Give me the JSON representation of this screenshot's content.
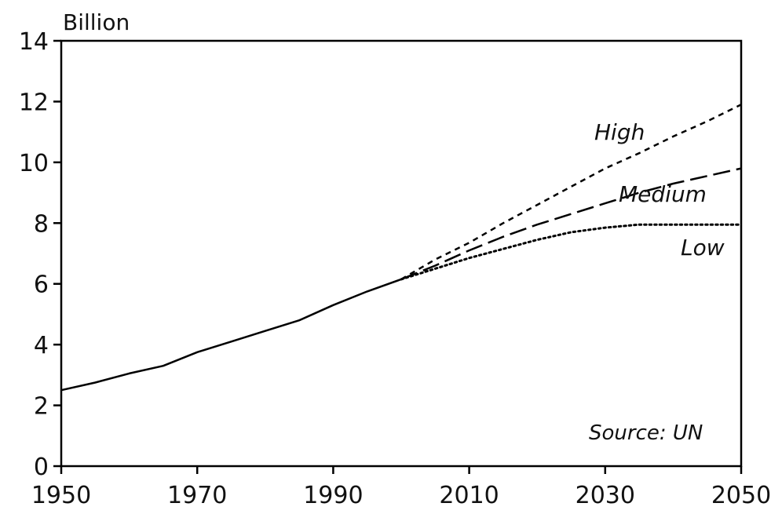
{
  "chart_data": {
    "type": "line",
    "ylabel": "Billion",
    "annotation": "Source: UN",
    "xlim": [
      1950,
      2050
    ],
    "ylim": [
      0,
      14
    ],
    "x_ticks": [
      "1950",
      "1970",
      "1990",
      "2010",
      "2030",
      "2050"
    ],
    "y_ticks": [
      "0",
      "2",
      "4",
      "6",
      "8",
      "10",
      "12",
      "14"
    ],
    "grid": false,
    "series": [
      {
        "name": "",
        "style": "solid",
        "x": [
          1950,
          1955,
          1960,
          1965,
          1970,
          1975,
          1980,
          1985,
          1990,
          1995,
          2000
        ],
        "values": [
          2.5,
          2.75,
          3.05,
          3.3,
          3.75,
          4.1,
          4.45,
          4.8,
          5.3,
          5.75,
          6.15
        ]
      },
      {
        "name": "High",
        "style": "short-dash",
        "x": [
          2000,
          2005,
          2010,
          2015,
          2020,
          2025,
          2030,
          2035,
          2040,
          2045,
          2050
        ],
        "values": [
          6.15,
          6.8,
          7.35,
          8.0,
          8.6,
          9.2,
          9.8,
          10.3,
          10.85,
          11.35,
          11.9
        ]
      },
      {
        "name": "Medium",
        "style": "long-dash",
        "x": [
          2000,
          2005,
          2010,
          2015,
          2020,
          2025,
          2030,
          2035,
          2040,
          2045,
          2050
        ],
        "values": [
          6.15,
          6.6,
          7.1,
          7.55,
          7.95,
          8.3,
          8.65,
          9.0,
          9.3,
          9.55,
          9.8
        ]
      },
      {
        "name": "Low",
        "style": "dotted",
        "x": [
          2000,
          2005,
          2010,
          2015,
          2020,
          2025,
          2030,
          2035,
          2040,
          2045,
          2050
        ],
        "values": [
          6.15,
          6.5,
          6.85,
          7.15,
          7.45,
          7.7,
          7.85,
          7.95,
          7.95,
          7.95,
          7.95
        ]
      }
    ]
  }
}
